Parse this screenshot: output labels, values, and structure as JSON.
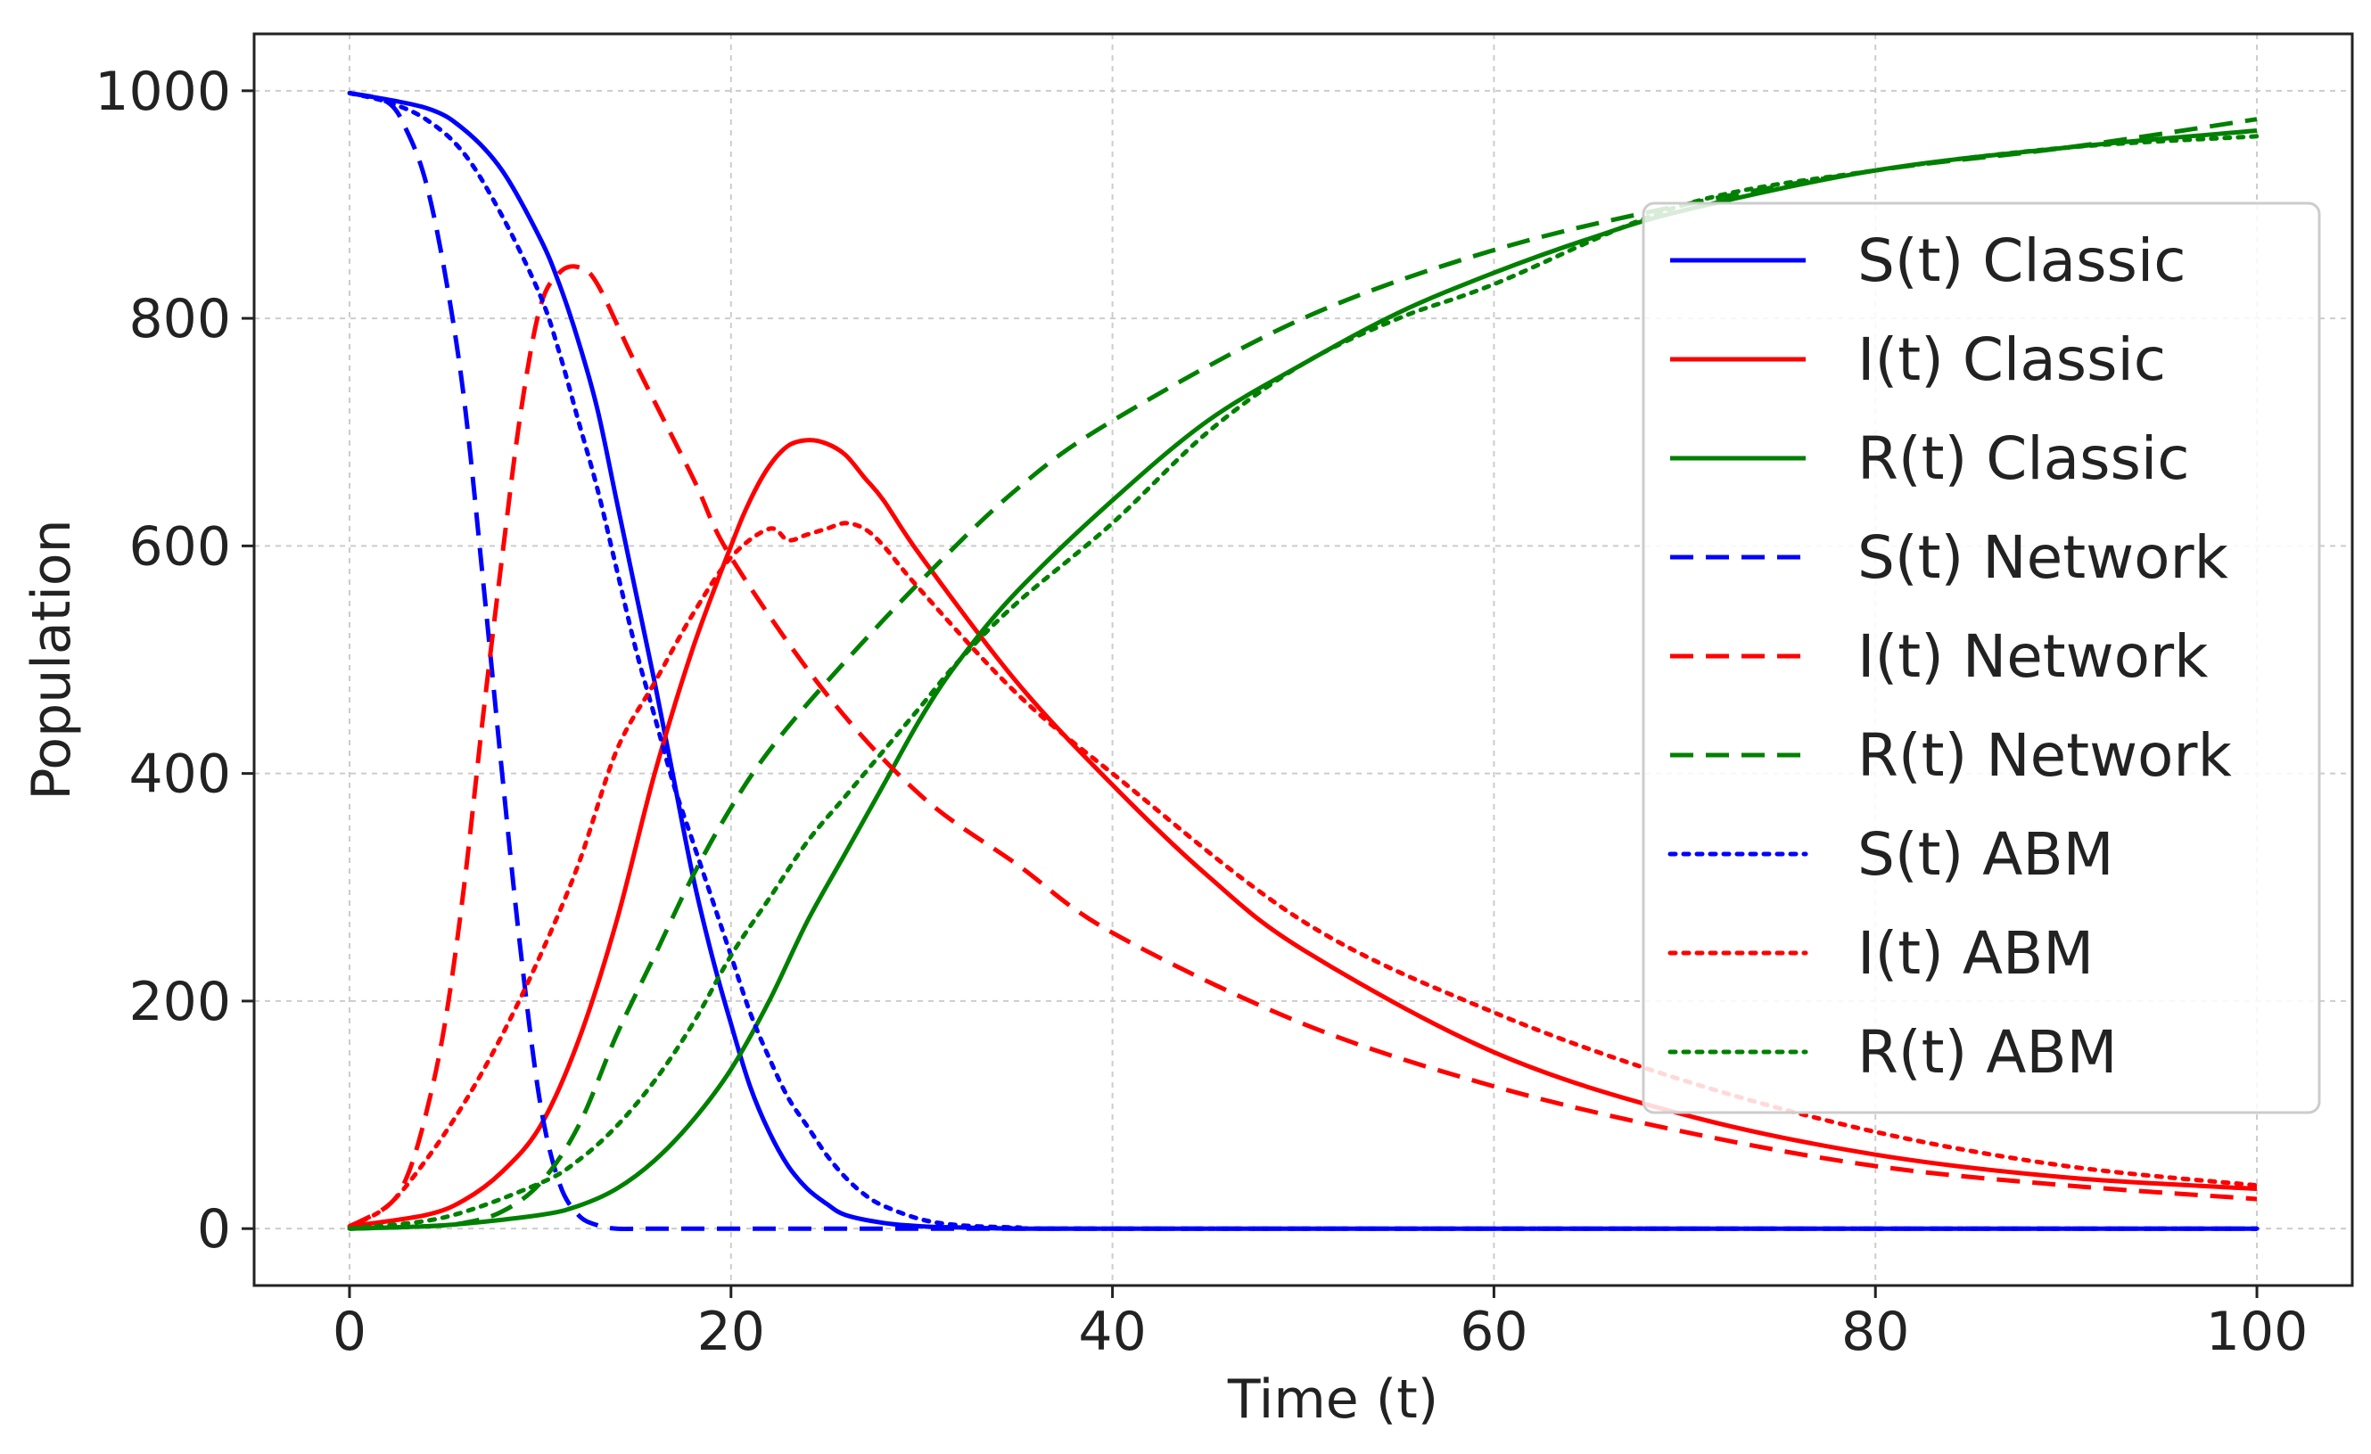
{
  "chart_data": {
    "type": "line",
    "title": "",
    "xlabel": "Time (t)",
    "ylabel": "Population",
    "xlim": [
      -5,
      105
    ],
    "ylim": [
      -50,
      1050
    ],
    "xticks": [
      0,
      20,
      40,
      60,
      80,
      100
    ],
    "yticks": [
      0,
      200,
      400,
      600,
      800,
      1000
    ],
    "grid": true,
    "legend_position": "right",
    "series": [
      {
        "name": "S(t) Classic",
        "color": "#0000ff",
        "dash": "solid",
        "x": [
          0,
          4,
          6,
          8,
          10,
          11,
          12,
          13,
          14,
          15,
          16,
          17,
          18,
          19,
          20,
          21,
          22,
          23,
          24,
          25,
          26,
          28,
          30,
          32,
          35,
          40,
          50,
          100
        ],
        "y": [
          998,
          985,
          966,
          930,
          870,
          830,
          780,
          720,
          640,
          560,
          480,
          395,
          310,
          240,
          180,
          125,
          85,
          55,
          35,
          22,
          12,
          5,
          2,
          1,
          0,
          0,
          0,
          0
        ]
      },
      {
        "name": "I(t) Classic",
        "color": "#ff0000",
        "dash": "solid",
        "x": [
          0,
          4,
          6,
          8,
          10,
          12,
          14,
          16,
          18,
          20,
          21,
          22,
          23,
          24,
          25,
          26,
          27,
          28,
          30,
          35,
          40,
          45,
          50,
          60,
          70,
          80,
          90,
          100
        ],
        "y": [
          2,
          12,
          25,
          50,
          90,
          165,
          270,
          400,
          510,
          600,
          640,
          670,
          688,
          693,
          690,
          680,
          660,
          640,
          590,
          480,
          390,
          310,
          245,
          155,
          100,
          65,
          45,
          35
        ]
      },
      {
        "name": "R(t) Classic",
        "color": "#008000",
        "dash": "solid",
        "x": [
          0,
          5,
          10,
          12,
          14,
          16,
          18,
          20,
          22,
          24,
          26,
          28,
          30,
          32,
          35,
          40,
          45,
          50,
          55,
          60,
          65,
          70,
          80,
          90,
          100
        ],
        "y": [
          0,
          3,
          12,
          20,
          35,
          60,
          95,
          140,
          200,
          270,
          330,
          390,
          450,
          500,
          560,
          640,
          710,
          760,
          805,
          840,
          870,
          895,
          930,
          950,
          965
        ]
      },
      {
        "name": "S(t) Network",
        "color": "#0000ff",
        "dash": "dashed",
        "x": [
          0,
          2,
          3,
          4,
          5,
          6,
          7,
          8,
          9,
          10,
          11,
          12,
          13,
          14,
          16,
          20,
          40,
          100
        ],
        "y": [
          998,
          990,
          965,
          920,
          840,
          730,
          570,
          400,
          240,
          110,
          40,
          12,
          3,
          0,
          0,
          0,
          0,
          0
        ]
      },
      {
        "name": "I(t) Network",
        "color": "#ff0000",
        "dash": "dashed",
        "x": [
          0,
          2,
          3,
          4,
          5,
          6,
          7,
          8,
          9,
          10,
          11,
          12,
          13,
          15,
          18,
          20,
          25,
          30,
          35,
          40,
          50,
          60,
          70,
          80,
          90,
          100
        ],
        "y": [
          2,
          20,
          45,
          100,
          180,
          300,
          450,
          590,
          720,
          810,
          840,
          845,
          830,
          760,
          660,
          590,
          470,
          380,
          320,
          260,
          180,
          125,
          85,
          55,
          38,
          26
        ]
      },
      {
        "name": "R(t) Network",
        "color": "#008000",
        "dash": "dashed",
        "x": [
          0,
          4,
          6,
          8,
          10,
          12,
          14,
          16,
          18,
          20,
          22,
          25,
          30,
          35,
          40,
          50,
          60,
          70,
          80,
          90,
          100
        ],
        "y": [
          0,
          2,
          5,
          15,
          40,
          90,
          170,
          240,
          310,
          370,
          420,
          480,
          570,
          650,
          710,
          800,
          860,
          900,
          930,
          950,
          975
        ]
      },
      {
        "name": "S(t) ABM",
        "color": "#0000ff",
        "dash": "dotted",
        "x": [
          0,
          2,
          4,
          6,
          8,
          10,
          11,
          12,
          13,
          14,
          15,
          16,
          17,
          18,
          19,
          20,
          21,
          22,
          23,
          24,
          25,
          26,
          27,
          28,
          30,
          32,
          35,
          40,
          100
        ],
        "y": [
          998,
          990,
          975,
          945,
          890,
          820,
          770,
          710,
          650,
          580,
          510,
          450,
          390,
          340,
          290,
          240,
          190,
          150,
          115,
          90,
          65,
          45,
          30,
          20,
          8,
          3,
          1,
          0,
          0
        ]
      },
      {
        "name": "I(t) ABM",
        "color": "#ff0000",
        "dash": "dotted",
        "x": [
          0,
          2,
          4,
          6,
          8,
          10,
          12,
          14,
          16,
          18,
          20,
          22,
          23,
          24,
          25,
          26,
          27,
          28,
          30,
          35,
          40,
          50,
          60,
          70,
          80,
          90,
          100
        ],
        "y": [
          2,
          20,
          60,
          110,
          170,
          240,
          320,
          420,
          480,
          540,
          590,
          615,
          605,
          610,
          615,
          620,
          615,
          600,
          560,
          470,
          400,
          270,
          190,
          130,
          85,
          55,
          38
        ]
      },
      {
        "name": "R(t) ABM",
        "color": "#008000",
        "dash": "dotted",
        "x": [
          0,
          5,
          10,
          12,
          14,
          16,
          18,
          20,
          22,
          24,
          26,
          28,
          30,
          32,
          35,
          40,
          45,
          50,
          55,
          60,
          70,
          80,
          90,
          100
        ],
        "y": [
          0,
          10,
          40,
          60,
          90,
          130,
          180,
          240,
          290,
          340,
          380,
          420,
          460,
          500,
          550,
          620,
          700,
          760,
          800,
          830,
          900,
          930,
          950,
          960
        ]
      }
    ]
  }
}
